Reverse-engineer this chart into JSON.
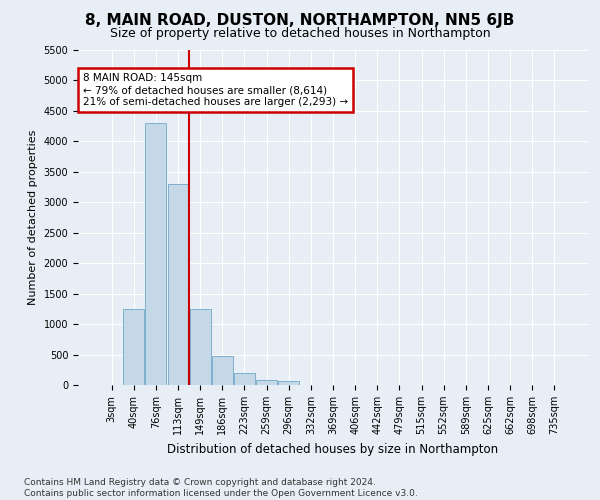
{
  "title": "8, MAIN ROAD, DUSTON, NORTHAMPTON, NN5 6JB",
  "subtitle": "Size of property relative to detached houses in Northampton",
  "xlabel": "Distribution of detached houses by size in Northampton",
  "ylabel": "Number of detached properties",
  "categories": [
    "3sqm",
    "40sqm",
    "76sqm",
    "113sqm",
    "149sqm",
    "186sqm",
    "223sqm",
    "259sqm",
    "296sqm",
    "332sqm",
    "369sqm",
    "406sqm",
    "442sqm",
    "479sqm",
    "515sqm",
    "552sqm",
    "589sqm",
    "625sqm",
    "662sqm",
    "698sqm",
    "735sqm"
  ],
  "values": [
    0,
    1250,
    4300,
    3300,
    1250,
    480,
    200,
    90,
    65,
    0,
    0,
    0,
    0,
    0,
    0,
    0,
    0,
    0,
    0,
    0,
    0
  ],
  "bar_color": "#c5d8e8",
  "bar_edge_color": "#6fa8c8",
  "annotation_text": "8 MAIN ROAD: 145sqm\n← 79% of detached houses are smaller (8,614)\n21% of semi-detached houses are larger (2,293) →",
  "annotation_box_color": "#ffffff",
  "annotation_box_edge_color": "#cc0000",
  "vline_color": "#cc0000",
  "vline_x_index": 3,
  "ylim": [
    0,
    5500
  ],
  "yticks": [
    0,
    500,
    1000,
    1500,
    2000,
    2500,
    3000,
    3500,
    4000,
    4500,
    5000,
    5500
  ],
  "background_color": "#e8eef5",
  "plot_bg_color": "#e8eef5",
  "footer_text": "Contains HM Land Registry data © Crown copyright and database right 2024.\nContains public sector information licensed under the Open Government Licence v3.0.",
  "title_fontsize": 11,
  "subtitle_fontsize": 9,
  "xlabel_fontsize": 8.5,
  "ylabel_fontsize": 8,
  "tick_fontsize": 7,
  "annotation_fontsize": 7.5,
  "footer_fontsize": 6.5
}
